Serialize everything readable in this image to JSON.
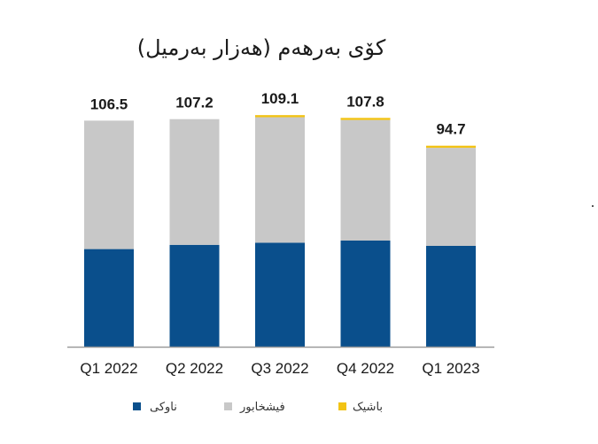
{
  "chart_data": {
    "type": "bar",
    "stacked": true,
    "title": "کۆی بەرهەم (هەزار بەرمیل)",
    "categories": [
      "Q1 2022",
      "Q2 2022",
      "Q3 2022",
      "Q4 2022",
      "Q1 2023"
    ],
    "totals": [
      "106.5",
      "107.2",
      "109.1",
      "107.8",
      "94.7"
    ],
    "ylim": [
      0,
      120
    ],
    "grid": false,
    "legend_position": "bottom",
    "series": [
      {
        "name": "ناوکی",
        "color": "#0a4f8c",
        "values": [
          46.0,
          48.0,
          49.0,
          50.0,
          47.5
        ]
      },
      {
        "name": "فیشخابور",
        "color": "#c8c8c8",
        "values": [
          60.5,
          59.2,
          59.1,
          56.8,
          46.2
        ]
      },
      {
        "name": "باشیک",
        "color": "#f2c314",
        "values": [
          0.0,
          0.0,
          1.0,
          1.0,
          1.0
        ]
      }
    ]
  }
}
